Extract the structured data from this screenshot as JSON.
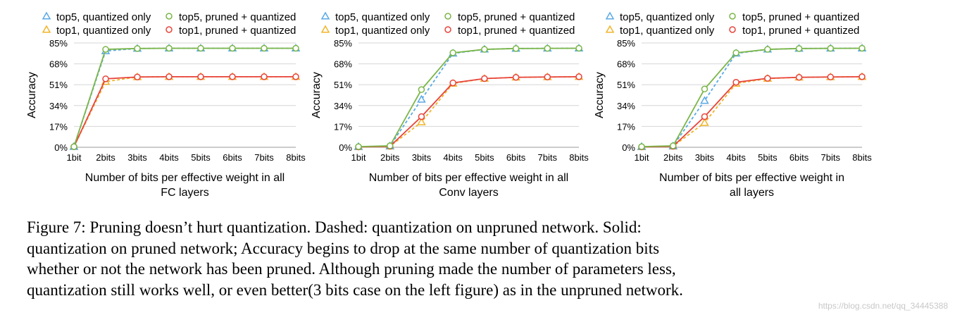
{
  "chart_data": [
    {
      "type": "line",
      "categories": [
        "1bit",
        "2bits",
        "3bits",
        "4bits",
        "5bits",
        "6bits",
        "7bits",
        "8bits"
      ],
      "xlabel": [
        "Number of bits per effective weight in all",
        "FC layers"
      ],
      "ylabel": "Accuracy",
      "ylim": [
        0,
        85
      ],
      "yticks": [
        "0%",
        "17%",
        "34%",
        "51%",
        "68%",
        "85%"
      ],
      "grid": "horizontal",
      "legend": "top",
      "series": [
        {
          "name": "top5, quantized only",
          "values": [
            0.5,
            78.5,
            80.5,
            80.7,
            80.7,
            80.7,
            80.7,
            80.7
          ]
        },
        {
          "name": "top5, pruned + quantized",
          "values": [
            0.5,
            79.8,
            80.5,
            80.7,
            80.7,
            80.7,
            80.7,
            80.7
          ]
        },
        {
          "name": "top1, quantized only",
          "values": [
            0.5,
            53.5,
            57.3,
            57.5,
            57.5,
            57.5,
            57.5,
            57.5
          ]
        },
        {
          "name": "top1, pruned + quantized",
          "values": [
            0.5,
            55.8,
            57.3,
            57.5,
            57.5,
            57.5,
            57.5,
            57.5
          ]
        }
      ]
    },
    {
      "type": "line",
      "categories": [
        "1bit",
        "2bits",
        "3bits",
        "4bits",
        "5bits",
        "6bits",
        "7bits",
        "8bits"
      ],
      "xlabel": [
        "Number of bits per effective weight in all",
        "Conv layers"
      ],
      "ylabel": "Accuracy",
      "ylim": [
        0,
        85
      ],
      "yticks": [
        "0%",
        "17%",
        "34%",
        "51%",
        "68%",
        "85%"
      ],
      "grid": "horizontal",
      "legend": "top",
      "series": [
        {
          "name": "top5, quantized only",
          "values": [
            0.5,
            1.0,
            39.0,
            76.5,
            79.8,
            80.5,
            80.6,
            80.7
          ]
        },
        {
          "name": "top5, pruned + quantized",
          "values": [
            0.5,
            1.2,
            47.0,
            77.0,
            79.8,
            80.5,
            80.6,
            80.7
          ]
        },
        {
          "name": "top1, quantized only",
          "values": [
            0.3,
            0.8,
            20.5,
            52.0,
            56.0,
            57.0,
            57.3,
            57.5
          ]
        },
        {
          "name": "top1, pruned + quantized",
          "values": [
            0.3,
            0.8,
            25.0,
            52.5,
            56.0,
            57.0,
            57.3,
            57.5
          ]
        }
      ]
    },
    {
      "type": "line",
      "categories": [
        "1bit",
        "2bits",
        "3bits",
        "4bits",
        "5bits",
        "6bits",
        "7bits",
        "8bits"
      ],
      "xlabel": [
        "Number of bits per effective weight in",
        "all layers"
      ],
      "ylabel": "Accuracy",
      "ylim": [
        0,
        85
      ],
      "yticks": [
        "0%",
        "17%",
        "34%",
        "51%",
        "68%",
        "85%"
      ],
      "grid": "horizontal",
      "legend": "top",
      "series": [
        {
          "name": "top5, quantized only",
          "values": [
            0.5,
            1.0,
            38.0,
            76.5,
            79.8,
            80.5,
            80.6,
            80.7
          ]
        },
        {
          "name": "top5, pruned + quantized",
          "values": [
            0.5,
            1.2,
            47.5,
            77.0,
            79.8,
            80.5,
            80.6,
            80.7
          ]
        },
        {
          "name": "top1, quantized only",
          "values": [
            0.3,
            0.8,
            20.0,
            52.0,
            56.0,
            57.0,
            57.3,
            57.5
          ]
        },
        {
          "name": "top1, pruned + quantized",
          "values": [
            0.3,
            0.8,
            25.0,
            53.0,
            56.2,
            57.0,
            57.3,
            57.5
          ]
        }
      ]
    }
  ],
  "series_styles": [
    {
      "color": "#5aa9e6",
      "marker": "triangle",
      "dashed": true
    },
    {
      "color": "#7ab648",
      "marker": "circle",
      "dashed": false
    },
    {
      "color": "#f0b429",
      "marker": "triangle",
      "dashed": true
    },
    {
      "color": "#e8433a",
      "marker": "circle",
      "dashed": false
    }
  ],
  "caption": {
    "lines": [
      "Figure 7: Pruning doesn’t hurt quantization. Dashed: quantization on unpruned network. Solid:",
      "quantization on pruned network; Accuracy begins to drop at the same number of quantization bits",
      "whether or not the network has been pruned. Although pruning made the number of parameters less,",
      "quantization still works well, or even better(3 bits case on the left figure) as in the unpruned network."
    ]
  },
  "watermark": "https://blog.csdn.net/qq_34445388"
}
